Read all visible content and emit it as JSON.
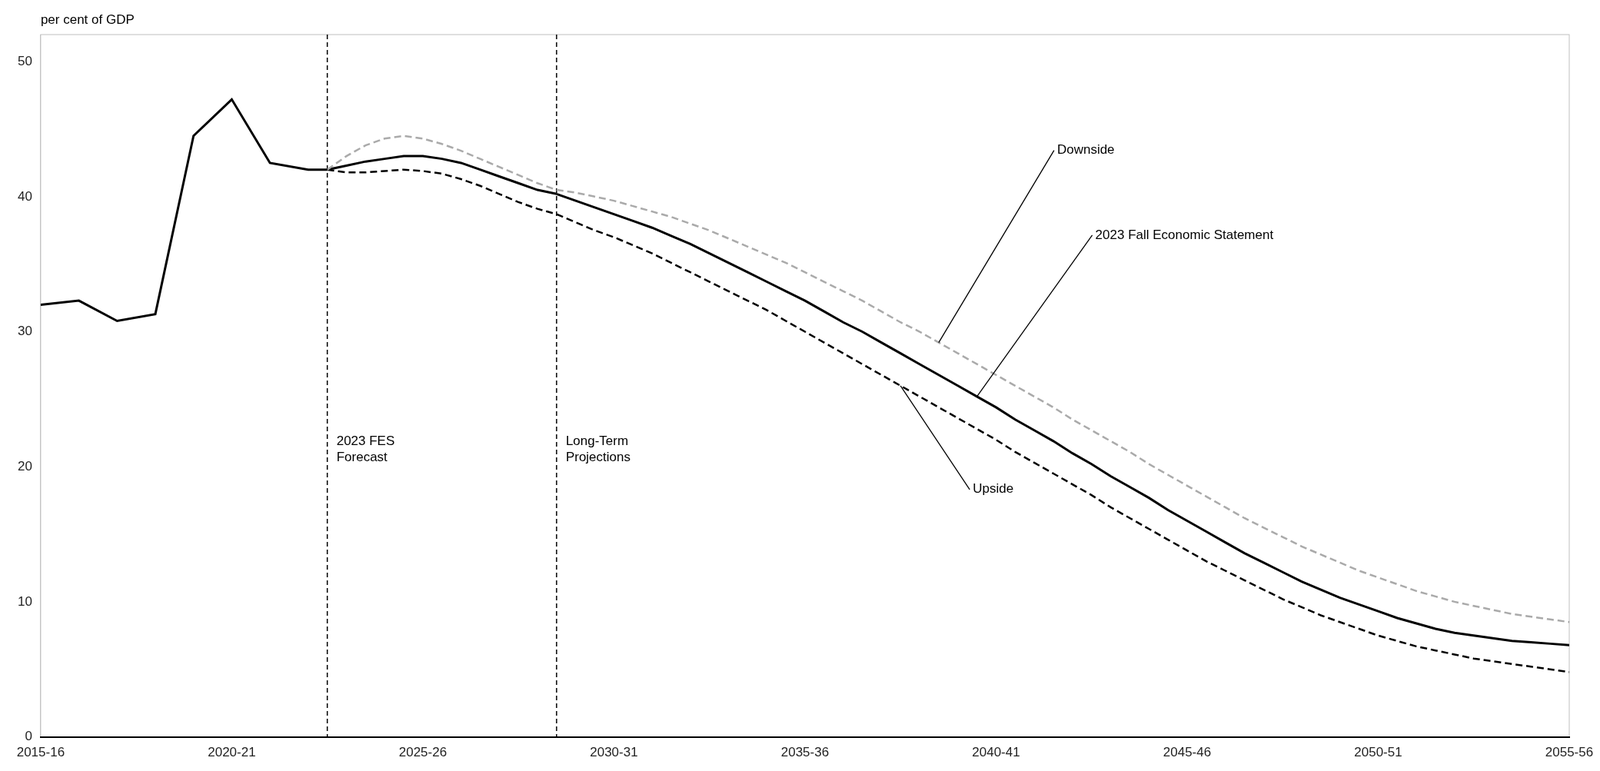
{
  "chart_data": {
    "type": "line",
    "ylabel": "per cent of GDP",
    "xlim": [
      0,
      40
    ],
    "ylim": [
      0,
      52
    ],
    "yticks": [
      0,
      10,
      20,
      30,
      40,
      50
    ],
    "xticks": [
      {
        "value": 0,
        "label": "2015-16"
      },
      {
        "value": 5,
        "label": "2020-21"
      },
      {
        "value": 10,
        "label": "2025-26"
      },
      {
        "value": 15,
        "label": "2030-31"
      },
      {
        "value": 20,
        "label": "2035-36"
      },
      {
        "value": 25,
        "label": "2040-41"
      },
      {
        "value": 30,
        "label": "2045-46"
      },
      {
        "value": 35,
        "label": "2050-51"
      },
      {
        "value": 40,
        "label": "2055-56"
      }
    ],
    "grid": false,
    "vlines": [
      {
        "x": 7.5,
        "label": "2023 FES\nForecast"
      },
      {
        "x": 13.5,
        "label": "Long-Term\nProjections"
      }
    ],
    "series": [
      {
        "color": "#000000",
        "line_style": "solid",
        "x": [
          0,
          1,
          2,
          3,
          4,
          5,
          6,
          7,
          7.5
        ],
        "values": [
          32.0,
          32.3,
          30.8,
          31.3,
          44.5,
          47.2,
          42.5,
          42.0,
          42.0
        ]
      },
      {
        "color": "#aaaaaa",
        "line_style": "dashed",
        "x": [
          7.5,
          8.0,
          8.5,
          9.0,
          9.5,
          10.0,
          10.5,
          11.0,
          11.5,
          12.0,
          12.5,
          13.0,
          13.5
        ],
        "values": [
          42.0,
          43.0,
          43.8,
          44.3,
          44.5,
          44.3,
          43.9,
          43.4,
          42.8,
          42.2,
          41.6,
          41.0,
          40.5
        ]
      },
      {
        "color": "#000000",
        "line_style": "solid",
        "x": [
          7.5,
          8.0,
          8.5,
          9.0,
          9.5,
          10.0,
          10.5,
          11.0,
          11.5,
          12.0,
          12.5,
          13.0,
          13.5
        ],
        "values": [
          42.0,
          42.3,
          42.6,
          42.8,
          43.0,
          43.0,
          42.8,
          42.5,
          42.0,
          41.5,
          41.0,
          40.5,
          40.2
        ]
      },
      {
        "color": "#000000",
        "line_style": "dashed",
        "x": [
          7.5,
          8.0,
          8.5,
          9.0,
          9.5,
          10.0,
          10.5,
          11.0,
          11.5,
          12.0,
          12.5,
          13.0,
          13.5
        ],
        "values": [
          42.0,
          41.8,
          41.8,
          41.9,
          42.0,
          41.9,
          41.7,
          41.3,
          40.8,
          40.2,
          39.6,
          39.1,
          38.7
        ]
      },
      {
        "color": "#aaaaaa",
        "line_style": "dashed",
        "annotation": "Downside",
        "x": [
          13.5,
          14.0,
          14.5,
          15.0,
          15.5,
          16.0,
          16.5,
          17.0,
          17.5,
          18.0,
          18.5,
          19.0,
          19.5,
          20.0,
          20.5,
          21.0,
          21.5,
          22.0,
          22.5,
          23.0,
          23.5,
          24.0,
          24.5,
          25.0,
          25.5,
          26.0,
          26.5,
          27.0,
          27.5,
          28.0,
          28.5,
          29.0,
          29.5,
          30.0,
          30.5,
          31.0,
          31.5,
          32.0,
          32.5,
          33.0,
          33.5,
          34.0,
          34.5,
          35.0,
          35.5,
          36.0,
          36.5,
          37.0,
          37.5,
          38.0,
          38.5,
          39.0,
          39.5,
          40.0
        ],
        "values": [
          40.5,
          40.3,
          40.0,
          39.7,
          39.3,
          38.9,
          38.5,
          38.0,
          37.5,
          36.9,
          36.3,
          35.7,
          35.1,
          34.4,
          33.7,
          33.0,
          32.3,
          31.5,
          30.7,
          30.0,
          29.2,
          28.4,
          27.6,
          26.8,
          26.0,
          25.2,
          24.4,
          23.5,
          22.7,
          21.9,
          21.1,
          20.2,
          19.4,
          18.6,
          17.8,
          17.0,
          16.2,
          15.5,
          14.8,
          14.1,
          13.5,
          12.9,
          12.3,
          11.8,
          11.3,
          10.8,
          10.4,
          10.0,
          9.7,
          9.4,
          9.1,
          8.9,
          8.7,
          8.5
        ]
      },
      {
        "color": "#000000",
        "line_style": "solid",
        "annotation": "2023 Fall Economic Statement",
        "x": [
          13.5,
          14.0,
          14.5,
          15.0,
          15.5,
          16.0,
          16.5,
          17.0,
          17.5,
          18.0,
          18.5,
          19.0,
          19.5,
          20.0,
          20.5,
          21.0,
          21.5,
          22.0,
          22.5,
          23.0,
          23.5,
          24.0,
          24.5,
          25.0,
          25.5,
          26.0,
          26.5,
          27.0,
          27.5,
          28.0,
          28.5,
          29.0,
          29.5,
          30.0,
          30.5,
          31.0,
          31.5,
          32.0,
          32.5,
          33.0,
          33.5,
          34.0,
          34.5,
          35.0,
          35.5,
          36.0,
          36.5,
          37.0,
          37.5,
          38.0,
          38.5,
          39.0,
          39.5,
          40.0
        ],
        "values": [
          40.2,
          39.7,
          39.2,
          38.7,
          38.2,
          37.7,
          37.1,
          36.5,
          35.8,
          35.1,
          34.4,
          33.7,
          33.0,
          32.3,
          31.5,
          30.7,
          30.0,
          29.2,
          28.4,
          27.6,
          26.8,
          26.0,
          25.2,
          24.4,
          23.5,
          22.7,
          21.9,
          21.0,
          20.2,
          19.3,
          18.5,
          17.7,
          16.8,
          16.0,
          15.2,
          14.4,
          13.6,
          12.9,
          12.2,
          11.5,
          10.9,
          10.3,
          9.8,
          9.3,
          8.8,
          8.4,
          8.0,
          7.7,
          7.5,
          7.3,
          7.1,
          7.0,
          6.9,
          6.8
        ]
      },
      {
        "color": "#000000",
        "line_style": "dashed",
        "annotation": "Upside",
        "x": [
          13.5,
          14.0,
          14.5,
          15.0,
          15.5,
          16.0,
          16.5,
          17.0,
          17.5,
          18.0,
          18.5,
          19.0,
          19.5,
          20.0,
          20.5,
          21.0,
          21.5,
          22.0,
          22.5,
          23.0,
          23.5,
          24.0,
          24.5,
          25.0,
          25.5,
          26.0,
          26.5,
          27.0,
          27.5,
          28.0,
          28.5,
          29.0,
          29.5,
          30.0,
          30.5,
          31.0,
          31.5,
          32.0,
          32.5,
          33.0,
          33.5,
          34.0,
          34.5,
          35.0,
          35.5,
          36.0,
          36.5,
          37.0,
          37.5,
          38.0,
          38.5,
          39.0,
          39.5,
          40.0
        ],
        "values": [
          38.7,
          38.1,
          37.5,
          37.0,
          36.4,
          35.8,
          35.1,
          34.4,
          33.7,
          33.0,
          32.3,
          31.6,
          30.8,
          30.0,
          29.2,
          28.4,
          27.6,
          26.8,
          26.0,
          25.2,
          24.4,
          23.6,
          22.8,
          22.0,
          21.1,
          20.3,
          19.5,
          18.7,
          17.9,
          17.0,
          16.2,
          15.4,
          14.6,
          13.8,
          13.0,
          12.3,
          11.6,
          10.9,
          10.2,
          9.6,
          9.0,
          8.5,
          8.0,
          7.5,
          7.1,
          6.7,
          6.4,
          6.1,
          5.8,
          5.6,
          5.4,
          5.2,
          5.0,
          4.8
        ]
      }
    ]
  }
}
